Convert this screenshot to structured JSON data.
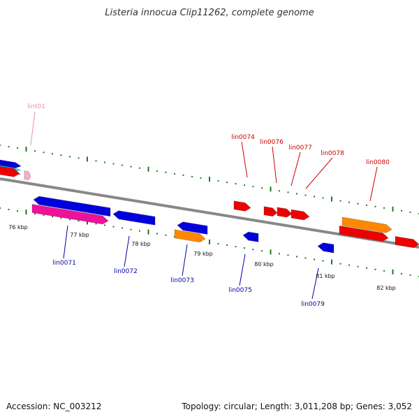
{
  "title": "Listeria innocua Clip11262, complete genome",
  "footer": {
    "accession": "Accession: NC_003212",
    "topology": "Topology: circular; Length: 3,011,208 bp; Genes: 3,052"
  },
  "colors": {
    "backbone": "#888888",
    "tick": "#1e7a1e",
    "upper_label": "#cc0000",
    "lower_label": "#0000aa",
    "lint_label": "#ee88bb"
  },
  "scale": [
    "76 kbp",
    "77 kbp",
    "78 kbp",
    "79 kbp",
    "80 kbp",
    "81 kbp",
    "82 kbp"
  ],
  "labels_upper": [
    "lint01",
    "lin0074",
    "lin0076",
    "lin0077",
    "lin0078",
    "lin0080"
  ],
  "labels_lower": [
    "lin0071",
    "lin0072",
    "lin0073",
    "lin0075",
    "lin0079"
  ]
}
